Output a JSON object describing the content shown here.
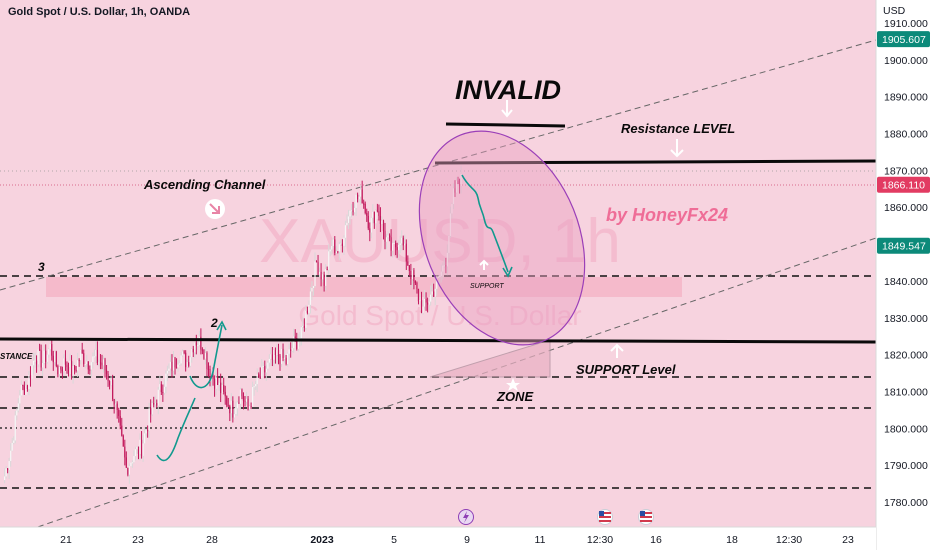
{
  "header": {
    "title": "Gold Spot / U.S. Dollar, 1h, OANDA"
  },
  "axis": {
    "currency": "USD",
    "y_ticks": [
      "1910.000",
      "1900.000",
      "1890.000",
      "1880.000",
      "1870.000",
      "1860.000",
      "1850.000",
      "1840.000",
      "1830.000",
      "1820.000",
      "1810.000",
      "1800.000",
      "1790.000",
      "1780.000"
    ],
    "x_ticks": [
      "21",
      "23",
      "28",
      "2023",
      "5",
      "9",
      "11",
      "12:30",
      "16",
      "18",
      "12:30",
      "23"
    ],
    "price_tags": [
      {
        "label": "1905.607",
        "color": "#0c8a7a"
      },
      {
        "label": "1866.110",
        "color": "#e23b62"
      },
      {
        "label": "1849.547",
        "color": "#0c8a7a"
      }
    ]
  },
  "watermark": {
    "symbol": "XAUUSD, 1h",
    "name": "Gold Spot / U.S. Dollar"
  },
  "annotations": {
    "invalid": "INVALID",
    "resistance_level": "Resistance LEVEL",
    "ascending_channel": "Ascending Channel",
    "by_honey": "by HoneyFx24",
    "support_small": "SUPPORT",
    "support_level": "SUPPORT Level",
    "zone": "ZONE",
    "stance": "STANCE",
    "wave_2": "2",
    "wave_3": "3"
  },
  "colors": {
    "background": "#f7d3df",
    "candle_up": "#f7f7f7",
    "candle_down": "#c2185b",
    "ellipse": "#9b3fb8",
    "teal_arrow": "#11998e",
    "watermark_pink": "#ef6d97"
  },
  "chart_data": {
    "type": "candlestick",
    "symbol": "XAUUSD",
    "interval": "1h",
    "ylim": [
      1777,
      1913
    ],
    "last_price": 1866.11,
    "levels": {
      "resistance": 1872,
      "invalid": 1882,
      "support_main": 1823.5,
      "support_zone_top": 1814.5,
      "support_zone_bottom": 1806,
      "dashed_3": 1841.5,
      "bottom_dashed": 1784
    },
    "close": [
      1787,
      1796,
      1810,
      1812,
      1820,
      1818,
      1822,
      1816,
      1818,
      1815,
      1820,
      1818,
      1819,
      1817,
      1812,
      1801,
      1789,
      1793,
      1795,
      1803,
      1808,
      1813,
      1817,
      1820,
      1818,
      1824,
      1823,
      1815,
      1812,
      1808,
      1805,
      1810,
      1805,
      1812,
      1815,
      1818,
      1820,
      1818,
      1823,
      1825,
      1835,
      1845,
      1840,
      1850,
      1848,
      1857,
      1862,
      1863,
      1855,
      1860,
      1852,
      1848,
      1852,
      1845,
      1838,
      1832,
      1836,
      1840,
      1846,
      1863,
      1869
    ]
  }
}
